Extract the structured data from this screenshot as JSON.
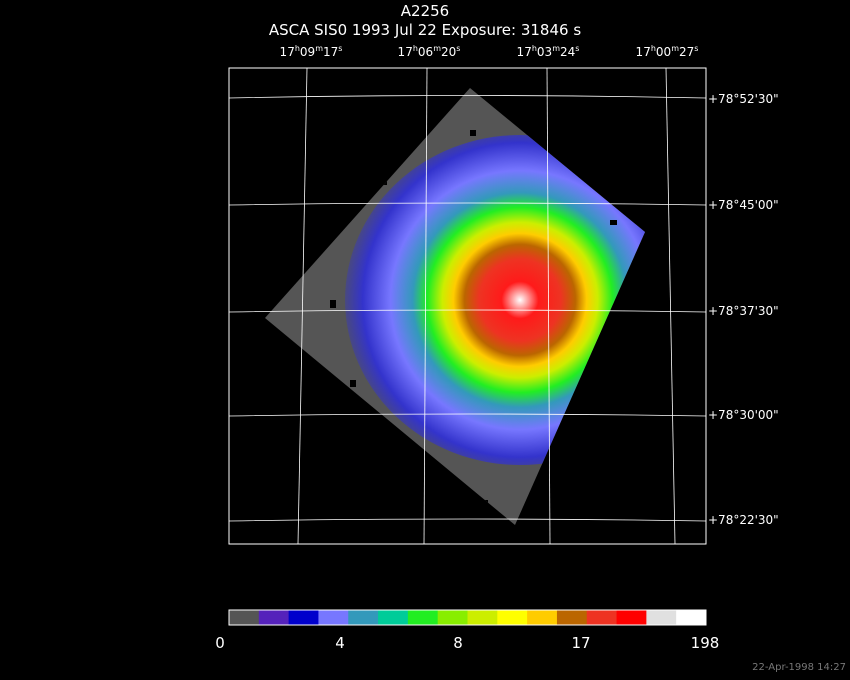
{
  "header": {
    "object": "A2256",
    "info": "ASCA SIS0    1993 Jul 22     Exposure: 31846  s"
  },
  "ra_ticks": [
    {
      "h": "17",
      "m": "09",
      "s": "17"
    },
    {
      "h": "17",
      "m": "06",
      "s": "20"
    },
    {
      "h": "17",
      "m": "03",
      "s": "24"
    },
    {
      "h": "17",
      "m": "00",
      "s": "27"
    }
  ],
  "dec_ticks": [
    "+78°52'30\"",
    "+78°45'00\"",
    "+78°37'30\"",
    "+78°30'00\"",
    "+78°22'30\""
  ],
  "colorbar": {
    "colors": [
      "#555555",
      "#5522bb",
      "#0000cc",
      "#7777ff",
      "#3399bb",
      "#00cc99",
      "#22ee22",
      "#88ee00",
      "#ccee00",
      "#ffff00",
      "#ffcc00",
      "#bb6600",
      "#ee3322",
      "#ff0000",
      "#e0e0e0",
      "#ffffff"
    ],
    "labels": [
      "0",
      "4",
      "8",
      "17",
      "198"
    ]
  },
  "footer": {
    "date": "22-Apr-1998 14:27"
  }
}
